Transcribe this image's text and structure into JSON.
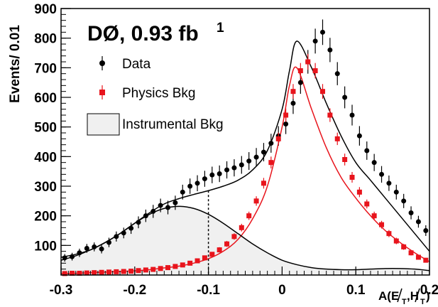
{
  "chart_data": {
    "type": "scatter",
    "title": "DØ, 0.93 fb",
    "title_superscript": "1",
    "xlabel": "A(E_T,H_T)",
    "xlabel_main": "A(E",
    "xlabel_sub1": "T",
    "xlabel_mid": ",H",
    "xlabel_sub2": "T",
    "xlabel_end": ")",
    "ylabel": "Events/ 0.01",
    "xlim": [
      -0.3,
      0.2
    ],
    "ylim": [
      0,
      900
    ],
    "x_ticks": [
      -0.3,
      -0.2,
      -0.1,
      0,
      0.1,
      0.2
    ],
    "x_tick_labels": [
      "-0.3",
      "-0.2",
      "-0.1",
      "0",
      "0.1",
      "0.2"
    ],
    "y_ticks": [
      100,
      200,
      300,
      400,
      500,
      600,
      700,
      800,
      900
    ],
    "y_tick_labels": [
      "100",
      "200",
      "300",
      "400",
      "500",
      "600",
      "700",
      "800",
      "900"
    ],
    "legend": {
      "position": "top-left",
      "entries": [
        {
          "label": "Data",
          "marker": "circle",
          "color": "#000000"
        },
        {
          "label": "Physics Bkg",
          "marker": "square",
          "color": "#e8141c"
        },
        {
          "label": "Instrumental Bkg",
          "marker": "filled-area",
          "color": "#f0f0f0"
        }
      ]
    },
    "cut_line_x": -0.1,
    "series": [
      {
        "name": "Data",
        "color": "#000000",
        "x": [
          -0.295,
          -0.285,
          -0.275,
          -0.265,
          -0.255,
          -0.245,
          -0.235,
          -0.225,
          -0.215,
          -0.205,
          -0.195,
          -0.185,
          -0.175,
          -0.165,
          -0.155,
          -0.145,
          -0.135,
          -0.125,
          -0.115,
          -0.105,
          -0.095,
          -0.085,
          -0.075,
          -0.065,
          -0.055,
          -0.045,
          -0.035,
          -0.025,
          -0.015,
          -0.005,
          0.005,
          0.015,
          0.025,
          0.035,
          0.045,
          0.055,
          0.065,
          0.075,
          0.085,
          0.095,
          0.105,
          0.115,
          0.125,
          0.135,
          0.145,
          0.155,
          0.165,
          0.175,
          0.185,
          0.195
        ],
        "values": [
          58,
          62,
          75,
          90,
          95,
          88,
          110,
          130,
          142,
          158,
          178,
          200,
          215,
          235,
          228,
          244,
          280,
          300,
          310,
          325,
          338,
          342,
          355,
          362,
          372,
          385,
          398,
          415,
          445,
          470,
          510,
          580,
          650,
          720,
          790,
          820,
          760,
          680,
          600,
          540,
          470,
          420,
          380,
          340,
          310,
          280,
          250,
          210,
          180,
          150
        ],
        "err": [
          13,
          13,
          14,
          15,
          15,
          15,
          16,
          17,
          18,
          19,
          20,
          21,
          22,
          23,
          23,
          24,
          25,
          26,
          27,
          27,
          28,
          28,
          29,
          29,
          30,
          30,
          31,
          31,
          32,
          33,
          34,
          36,
          38,
          40,
          42,
          43,
          41,
          39,
          37,
          35,
          33,
          31,
          29,
          28,
          26,
          25,
          24,
          22,
          20,
          18
        ]
      },
      {
        "name": "Physics Bkg",
        "color": "#e8141c",
        "x": [
          -0.295,
          -0.285,
          -0.275,
          -0.265,
          -0.255,
          -0.245,
          -0.235,
          -0.225,
          -0.215,
          -0.205,
          -0.195,
          -0.185,
          -0.175,
          -0.165,
          -0.155,
          -0.145,
          -0.135,
          -0.125,
          -0.115,
          -0.105,
          -0.095,
          -0.085,
          -0.075,
          -0.065,
          -0.055,
          -0.045,
          -0.035,
          -0.025,
          -0.015,
          -0.005,
          0.005,
          0.015,
          0.025,
          0.035,
          0.045,
          0.055,
          0.065,
          0.075,
          0.085,
          0.095,
          0.105,
          0.115,
          0.125,
          0.135,
          0.145,
          0.155,
          0.165,
          0.175,
          0.185,
          0.195
        ],
        "values": [
          5,
          6,
          6,
          7,
          8,
          9,
          10,
          11,
          12,
          13,
          15,
          17,
          19,
          22,
          25,
          29,
          34,
          40,
          48,
          58,
          70,
          85,
          105,
          130,
          160,
          200,
          250,
          310,
          380,
          460,
          540,
          620,
          690,
          720,
          690,
          620,
          540,
          460,
          390,
          330,
          280,
          240,
          200,
          170,
          140,
          115,
          95,
          75,
          60,
          50
        ],
        "err": [
          2,
          2,
          2,
          2,
          3,
          3,
          3,
          3,
          3,
          4,
          4,
          4,
          4,
          5,
          5,
          5,
          6,
          6,
          7,
          8,
          8,
          9,
          10,
          11,
          13,
          14,
          16,
          18,
          20,
          21,
          23,
          25,
          26,
          27,
          26,
          25,
          23,
          21,
          20,
          18,
          17,
          15,
          14,
          13,
          12,
          11,
          10,
          9,
          8,
          7
        ]
      }
    ],
    "fit_curves": [
      {
        "name": "Data fit",
        "color": "#000000",
        "x": [
          -0.3,
          -0.28,
          -0.26,
          -0.24,
          -0.22,
          -0.2,
          -0.18,
          -0.16,
          -0.14,
          -0.12,
          -0.1,
          -0.08,
          -0.06,
          -0.04,
          -0.02,
          0,
          0.01,
          0.02,
          0.04,
          0.06,
          0.08,
          0.1,
          0.12,
          0.14,
          0.16,
          0.18,
          0.2
        ],
        "values": [
          60,
          70,
          85,
          110,
          140,
          175,
          210,
          240,
          258,
          272,
          285,
          300,
          320,
          355,
          420,
          560,
          690,
          790,
          700,
          580,
          470,
          380,
          320,
          260,
          200,
          140,
          80
        ]
      },
      {
        "name": "Physics Bkg fit",
        "color": "#e8141c",
        "x": [
          -0.3,
          -0.28,
          -0.26,
          -0.24,
          -0.22,
          -0.2,
          -0.18,
          -0.16,
          -0.14,
          -0.12,
          -0.1,
          -0.08,
          -0.06,
          -0.04,
          -0.02,
          0,
          0.01,
          0.02,
          0.04,
          0.06,
          0.08,
          0.1,
          0.12,
          0.14,
          0.16,
          0.18,
          0.2
        ],
        "values": [
          5,
          6,
          8,
          10,
          12,
          14,
          18,
          24,
          30,
          40,
          55,
          80,
          120,
          190,
          300,
          500,
          640,
          700,
          560,
          430,
          330,
          260,
          200,
          150,
          110,
          75,
          45
        ]
      },
      {
        "name": "Instrumental Bkg",
        "color": "#000000",
        "fill": "#f0f0f0",
        "x": [
          -0.3,
          -0.28,
          -0.26,
          -0.24,
          -0.22,
          -0.2,
          -0.18,
          -0.16,
          -0.14,
          -0.12,
          -0.1,
          -0.08,
          -0.06,
          -0.04,
          -0.02,
          0,
          0.02,
          0.04,
          0.06,
          0.08,
          0.1,
          0.12,
          0.14,
          0.16,
          0.18,
          0.2
        ],
        "values": [
          50,
          65,
          85,
          110,
          140,
          175,
          205,
          225,
          232,
          225,
          205,
          175,
          140,
          105,
          75,
          50,
          35,
          25,
          20,
          18,
          18,
          20,
          22,
          22,
          20,
          15
        ]
      }
    ]
  }
}
